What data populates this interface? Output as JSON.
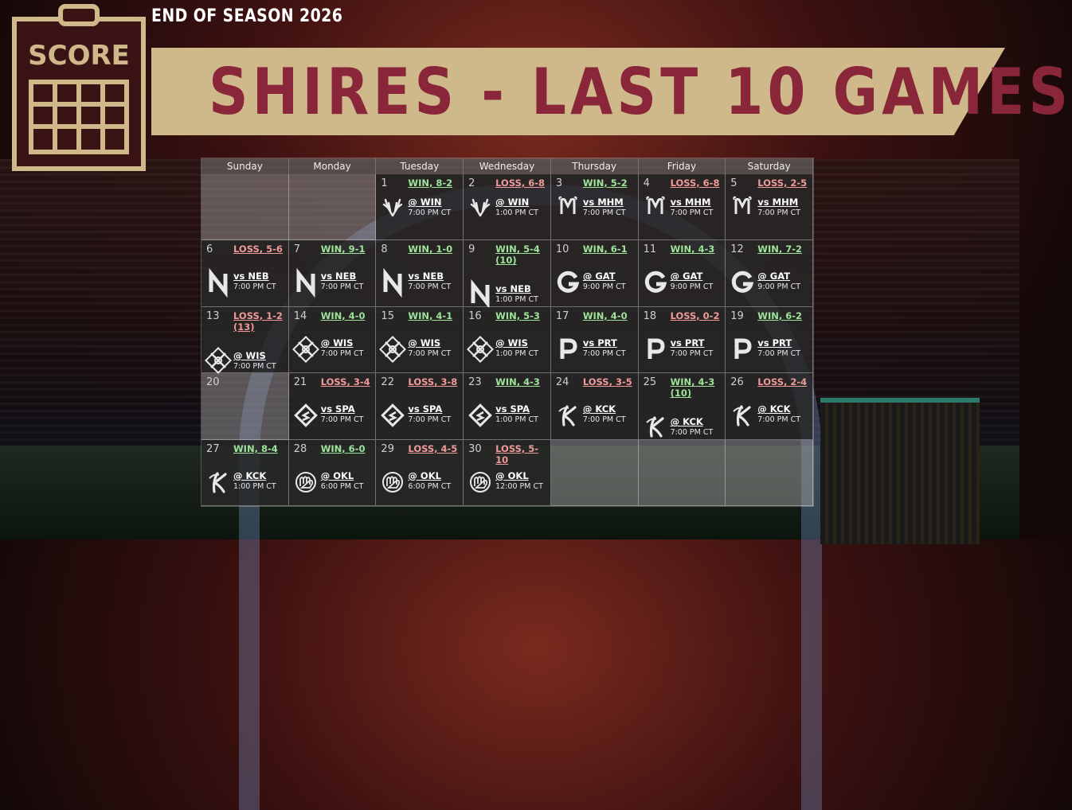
{
  "header": {
    "season_label": "END OF SEASON 2026",
    "title": "SHIRES - LAST 10 GAMES",
    "logo_text": "SCORE"
  },
  "colors": {
    "ribbon": "#cfb98a",
    "title": "#8a2639",
    "win": "#9ee59a",
    "loss": "#f09a9a"
  },
  "weekdays": [
    "Sunday",
    "Monday",
    "Tuesday",
    "Wednesday",
    "Thursday",
    "Friday",
    "Saturday"
  ],
  "games": [
    {
      "day": "",
      "empty": true
    },
    {
      "day": "",
      "empty": true
    },
    {
      "day": "1",
      "result": "WIN, 8-2",
      "outcome": "win",
      "opponent": "@ WIN",
      "time": "7:00 PM CT",
      "icon": "antlers-icon",
      "pos": "top"
    },
    {
      "day": "2",
      "result": "LOSS, 6-8",
      "outcome": "loss",
      "opponent": "@ WIN",
      "time": "1:00 PM CT",
      "icon": "antlers-icon",
      "pos": "top"
    },
    {
      "day": "3",
      "result": "WIN, 5-2",
      "outcome": "win",
      "opponent": "vs MHM",
      "time": "7:00 PM CT",
      "icon": "m-crest-icon",
      "pos": "top"
    },
    {
      "day": "4",
      "result": "LOSS, 6-8",
      "outcome": "loss",
      "opponent": "vs MHM",
      "time": "7:00 PM CT",
      "icon": "m-crest-icon",
      "pos": "top"
    },
    {
      "day": "5",
      "result": "LOSS, 2-5",
      "outcome": "loss",
      "opponent": "vs MHM",
      "time": "7:00 PM CT",
      "icon": "m-crest-icon",
      "pos": "top"
    },
    {
      "day": "6",
      "result": "LOSS, 5-6",
      "outcome": "loss",
      "opponent": "vs NEB",
      "time": "7:00 PM CT",
      "icon": "n-letter-icon",
      "pos": "normal"
    },
    {
      "day": "7",
      "result": "WIN, 9-1",
      "outcome": "win",
      "opponent": "vs NEB",
      "time": "7:00 PM CT",
      "icon": "n-letter-icon",
      "pos": "normal"
    },
    {
      "day": "8",
      "result": "WIN, 1-0",
      "outcome": "win",
      "opponent": "vs NEB",
      "time": "7:00 PM CT",
      "icon": "n-letter-icon",
      "pos": "normal"
    },
    {
      "day": "9",
      "result": "WIN, 5-4 (10)",
      "outcome": "win",
      "opponent": "vs NEB",
      "time": "1:00 PM CT",
      "icon": "n-letter-icon",
      "pos": "low"
    },
    {
      "day": "10",
      "result": "WIN, 6-1",
      "outcome": "win",
      "opponent": "@ GAT",
      "time": "9:00 PM CT",
      "icon": "g-letter-icon",
      "pos": "normal"
    },
    {
      "day": "11",
      "result": "WIN, 4-3",
      "outcome": "win",
      "opponent": "@ GAT",
      "time": "9:00 PM CT",
      "icon": "g-letter-icon",
      "pos": "normal"
    },
    {
      "day": "12",
      "result": "WIN, 7-2",
      "outcome": "win",
      "opponent": "@ GAT",
      "time": "9:00 PM CT",
      "icon": "g-letter-icon",
      "pos": "normal"
    },
    {
      "day": "13",
      "result": "LOSS, 1-2 (13)",
      "outcome": "loss",
      "opponent": "@ WIS",
      "time": "7:00 PM CT",
      "icon": "crossed-swords-icon",
      "pos": "low"
    },
    {
      "day": "14",
      "result": "WIN, 4-0",
      "outcome": "win",
      "opponent": "@ WIS",
      "time": "7:00 PM CT",
      "icon": "crossed-swords-icon",
      "pos": "normal"
    },
    {
      "day": "15",
      "result": "WIN, 4-1",
      "outcome": "win",
      "opponent": "@ WIS",
      "time": "7:00 PM CT",
      "icon": "crossed-swords-icon",
      "pos": "normal"
    },
    {
      "day": "16",
      "result": "WIN, 5-3",
      "outcome": "win",
      "opponent": "@ WIS",
      "time": "1:00 PM CT",
      "icon": "crossed-swords-icon",
      "pos": "normal"
    },
    {
      "day": "17",
      "result": "WIN, 4-0",
      "outcome": "win",
      "opponent": "vs PRT",
      "time": "7:00 PM CT",
      "icon": "p-letter-icon",
      "pos": "normal"
    },
    {
      "day": "18",
      "result": "LOSS, 0-2",
      "outcome": "loss",
      "opponent": "vs PRT",
      "time": "7:00 PM CT",
      "icon": "p-letter-icon",
      "pos": "normal"
    },
    {
      "day": "19",
      "result": "WIN, 6-2",
      "outcome": "win",
      "opponent": "vs PRT",
      "time": "7:00 PM CT",
      "icon": "p-letter-icon",
      "pos": "normal"
    },
    {
      "day": "20",
      "empty": true
    },
    {
      "day": "21",
      "result": "LOSS, 3-4",
      "outcome": "loss",
      "opponent": "vs SPA",
      "time": "7:00 PM CT",
      "icon": "diamond-s-icon",
      "pos": "normal"
    },
    {
      "day": "22",
      "result": "LOSS, 3-8",
      "outcome": "loss",
      "opponent": "vs SPA",
      "time": "7:00 PM CT",
      "icon": "diamond-s-icon",
      "pos": "normal"
    },
    {
      "day": "23",
      "result": "WIN, 4-3",
      "outcome": "win",
      "opponent": "vs SPA",
      "time": "1:00 PM CT",
      "icon": "diamond-s-icon",
      "pos": "normal"
    },
    {
      "day": "24",
      "result": "LOSS, 3-5",
      "outcome": "loss",
      "opponent": "@ KCK",
      "time": "7:00 PM CT",
      "icon": "k-script-icon",
      "pos": "normal"
    },
    {
      "day": "25",
      "result": "WIN, 4-3 (10)",
      "outcome": "win",
      "opponent": "@ KCK",
      "time": "7:00 PM CT",
      "icon": "k-script-icon",
      "pos": "low"
    },
    {
      "day": "26",
      "result": "LOSS, 2-4",
      "outcome": "loss",
      "opponent": "@ KCK",
      "time": "7:00 PM CT",
      "icon": "k-script-icon",
      "pos": "normal"
    },
    {
      "day": "27",
      "result": "WIN, 8-4",
      "outcome": "win",
      "opponent": "@ KCK",
      "time": "1:00 PM CT",
      "icon": "k-script-icon",
      "pos": "normal"
    },
    {
      "day": "28",
      "result": "WIN, 6-0",
      "outcome": "win",
      "opponent": "@ OKL",
      "time": "6:00 PM CT",
      "icon": "baseball-glove-icon",
      "pos": "normal"
    },
    {
      "day": "29",
      "result": "LOSS, 4-5",
      "outcome": "loss",
      "opponent": "@ OKL",
      "time": "6:00 PM CT",
      "icon": "baseball-glove-icon",
      "pos": "normal"
    },
    {
      "day": "30",
      "result": "LOSS, 5-10",
      "outcome": "loss",
      "opponent": "@ OKL",
      "time": "12:00 PM CT",
      "icon": "baseball-glove-icon",
      "pos": "normal"
    },
    {
      "day": "",
      "empty": true
    },
    {
      "day": "",
      "empty": true
    },
    {
      "day": "",
      "empty": true
    }
  ]
}
